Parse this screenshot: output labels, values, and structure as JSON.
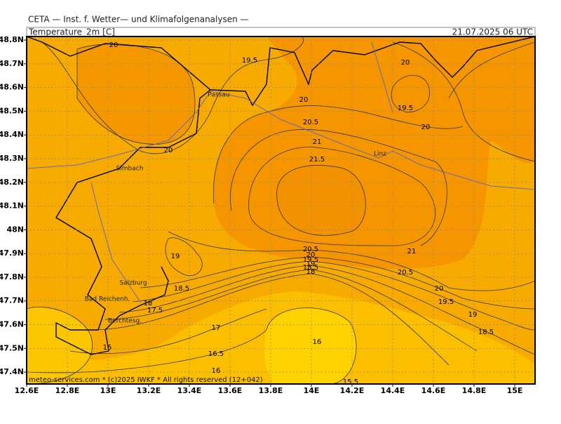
{
  "header": {
    "title": "CETA — Inst. f. Wetter— und Klimafolgenanalysen —"
  },
  "map": {
    "variable": "Temperature_2m [C]",
    "valid_time": "21.07.2025 06 UTC",
    "xlim": [
      12.6,
      15.1
    ],
    "ylim": [
      47.35,
      48.815
    ],
    "xticks": [
      {
        "value": 12.6,
        "label": "12.6E"
      },
      {
        "value": 12.8,
        "label": "12.8E"
      },
      {
        "value": 13,
        "label": "13E"
      },
      {
        "value": 13.2,
        "label": "13.2E"
      },
      {
        "value": 13.4,
        "label": "13.4E"
      },
      {
        "value": 13.6,
        "label": "13.6E"
      },
      {
        "value": 13.8,
        "label": "13.8E"
      },
      {
        "value": 14,
        "label": "14E"
      },
      {
        "value": 14.2,
        "label": "14.2E"
      },
      {
        "value": 14.4,
        "label": "14.4E"
      },
      {
        "value": 14.6,
        "label": "14.6E"
      },
      {
        "value": 14.8,
        "label": "14.8E"
      },
      {
        "value": 15,
        "label": "15E"
      }
    ],
    "yticks": [
      {
        "value": 48.8,
        "label": "48.8N"
      },
      {
        "value": 48.7,
        "label": "48.7N"
      },
      {
        "value": 48.6,
        "label": "48.6N"
      },
      {
        "value": 48.5,
        "label": "48.5N"
      },
      {
        "value": 48.4,
        "label": "48.4N"
      },
      {
        "value": 48.3,
        "label": "48.3N"
      },
      {
        "value": 48.2,
        "label": "48.2N"
      },
      {
        "value": 48.1,
        "label": "48.1N"
      },
      {
        "value": 48,
        "label": "48N"
      },
      {
        "value": 47.9,
        "label": "47.9N"
      },
      {
        "value": 47.8,
        "label": "47.8N"
      },
      {
        "value": 47.7,
        "label": "47.7N"
      },
      {
        "value": 47.6,
        "label": "47.6N"
      },
      {
        "value": 47.5,
        "label": "47.5N"
      },
      {
        "value": 47.4,
        "label": "47.4N"
      }
    ],
    "places": [
      "Passau",
      "Simbach",
      "Linz",
      "Salzburg",
      "Bad Reichenh.",
      "Berchtesg."
    ],
    "contour_labels": [
      20,
      19.5,
      20,
      20,
      19.5,
      20,
      20.5,
      21,
      21.5,
      20,
      19,
      20.5,
      20,
      19.5,
      19,
      18.5,
      18,
      21,
      20.5,
      18.5,
      20,
      18,
      17.5,
      19.5,
      19,
      17,
      18.5,
      16,
      15,
      16.5,
      16,
      15.5
    ]
  },
  "footer": "meteo-services.com * (c)2025 IWKF * All rights reserved (12+042)"
}
